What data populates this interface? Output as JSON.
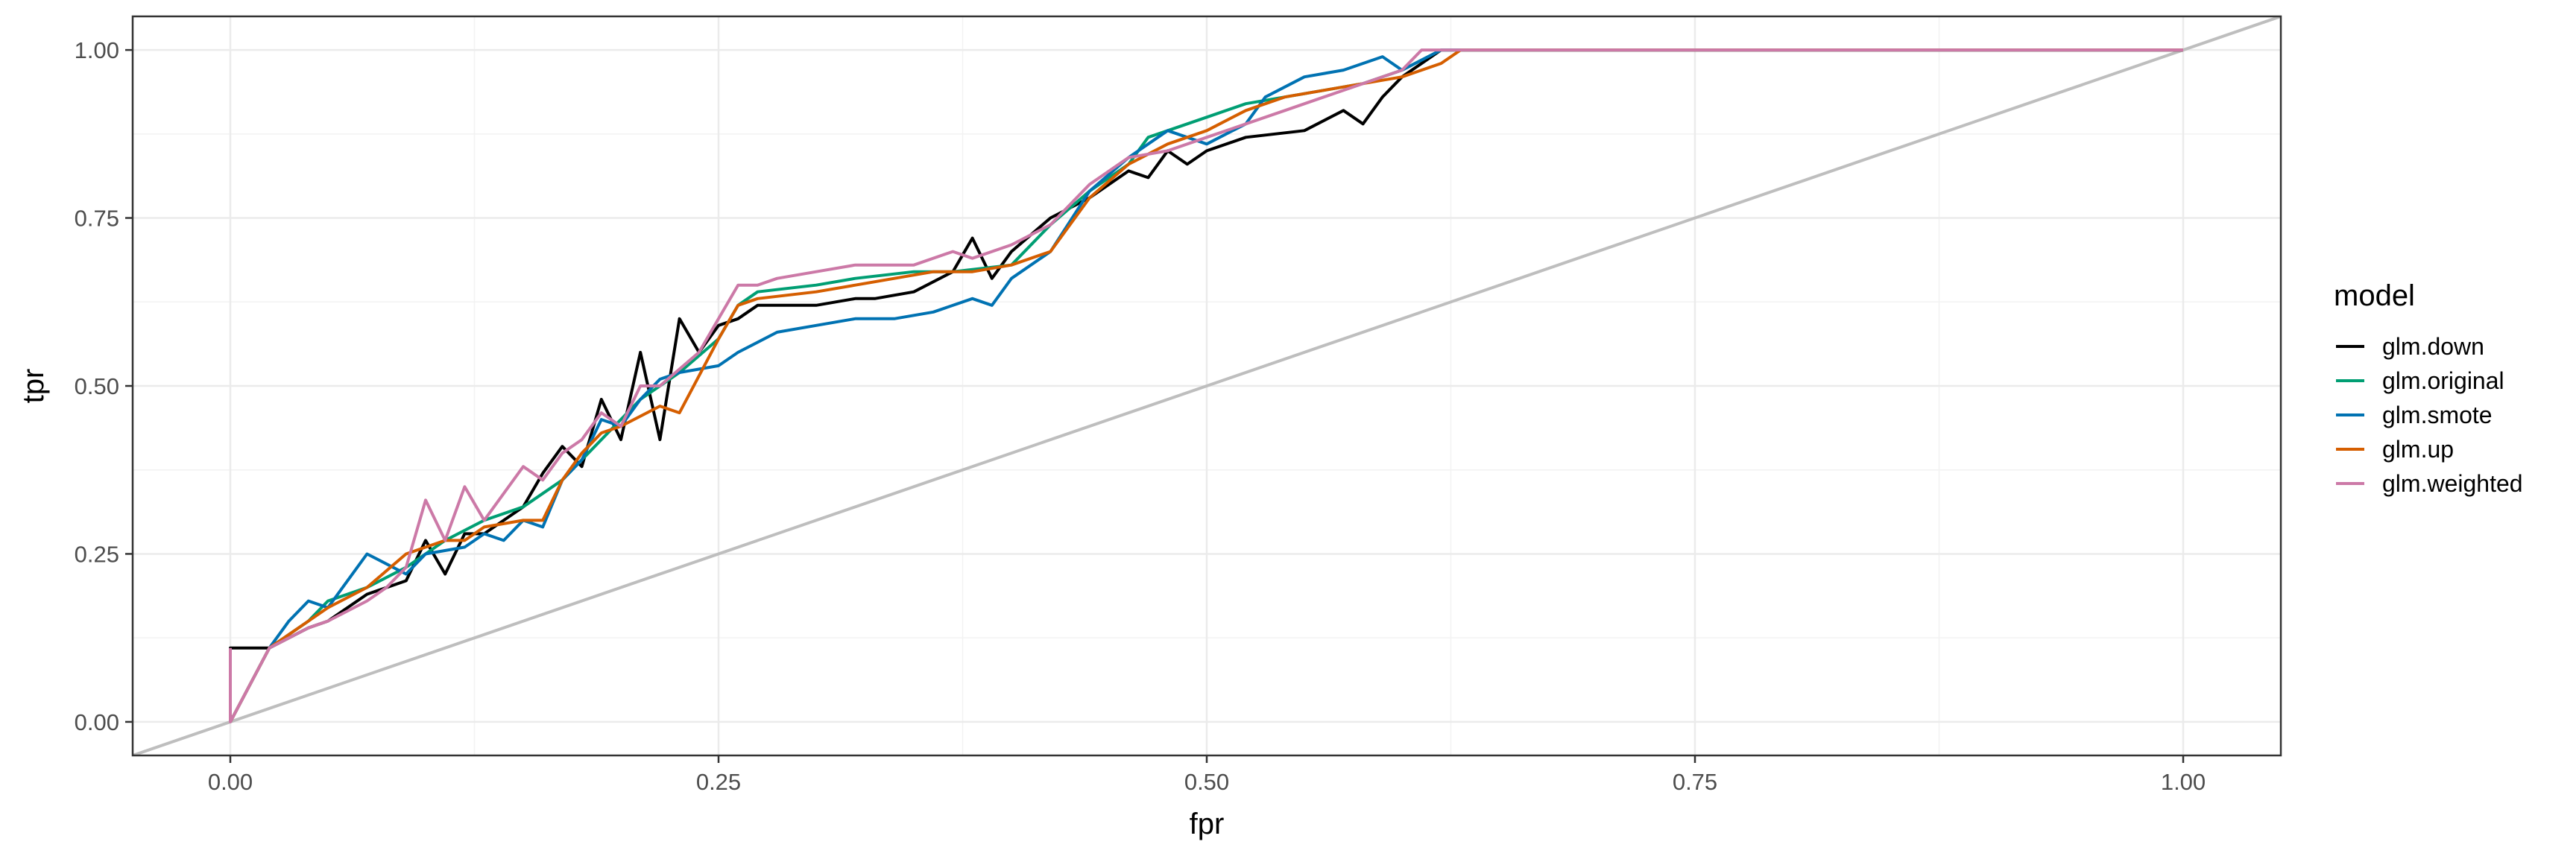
{
  "chart_data": {
    "type": "line",
    "xlabel": "fpr",
    "ylabel": "tpr",
    "xlim": [
      -0.05,
      1.05
    ],
    "ylim": [
      -0.05,
      1.05
    ],
    "x_ticks": [
      0,
      0.25,
      0.5,
      0.75,
      1
    ],
    "x_tick_labels": [
      "0.00",
      "0.25",
      "0.50",
      "0.75",
      "1.00"
    ],
    "y_ticks": [
      0,
      0.25,
      0.5,
      0.75,
      1
    ],
    "y_tick_labels": [
      "0.00",
      "0.25",
      "0.50",
      "0.75",
      "1.00"
    ],
    "grid": true,
    "legend": {
      "title": "model",
      "position": "right"
    },
    "reference_line": {
      "x": [
        -0.05,
        1.05
      ],
      "y": [
        -0.05,
        1.05
      ],
      "color": "#bebebe"
    },
    "series": [
      {
        "name": "glm.down",
        "color": "#000000",
        "x": [
          0,
          0,
          0.02,
          0.04,
          0.05,
          0.07,
          0.09,
          0.1,
          0.11,
          0.12,
          0.13,
          0.14,
          0.15,
          0.16,
          0.17,
          0.18,
          0.19,
          0.2,
          0.21,
          0.22,
          0.23,
          0.24,
          0.25,
          0.26,
          0.27,
          0.3,
          0.32,
          0.33,
          0.35,
          0.37,
          0.38,
          0.39,
          0.4,
          0.42,
          0.44,
          0.46,
          0.47,
          0.48,
          0.49,
          0.5,
          0.52,
          0.55,
          0.57,
          0.58,
          0.59,
          0.6,
          0.62,
          0.63,
          1
        ],
        "y": [
          0,
          0.11,
          0.11,
          0.14,
          0.15,
          0.19,
          0.21,
          0.27,
          0.22,
          0.28,
          0.28,
          0.3,
          0.32,
          0.37,
          0.41,
          0.38,
          0.48,
          0.42,
          0.55,
          0.42,
          0.6,
          0.55,
          0.59,
          0.6,
          0.62,
          0.62,
          0.63,
          0.63,
          0.64,
          0.67,
          0.72,
          0.66,
          0.7,
          0.75,
          0.78,
          0.82,
          0.81,
          0.85,
          0.83,
          0.85,
          0.87,
          0.88,
          0.91,
          0.89,
          0.93,
          0.96,
          1,
          1,
          1
        ]
      },
      {
        "name": "glm.original",
        "color": "#009E73",
        "x": [
          0,
          0.02,
          0.04,
          0.05,
          0.07,
          0.09,
          0.11,
          0.13,
          0.15,
          0.17,
          0.19,
          0.21,
          0.23,
          0.25,
          0.26,
          0.27,
          0.3,
          0.32,
          0.35,
          0.37,
          0.4,
          0.42,
          0.44,
          0.46,
          0.47,
          0.48,
          0.5,
          0.52,
          0.54,
          0.56,
          0.58,
          0.6,
          0.62,
          0.63,
          1
        ],
        "y": [
          0,
          0.11,
          0.15,
          0.18,
          0.2,
          0.23,
          0.27,
          0.3,
          0.32,
          0.36,
          0.42,
          0.48,
          0.52,
          0.57,
          0.62,
          0.64,
          0.65,
          0.66,
          0.67,
          0.67,
          0.68,
          0.74,
          0.79,
          0.83,
          0.87,
          0.88,
          0.9,
          0.92,
          0.93,
          0.94,
          0.95,
          0.97,
          1,
          1,
          1
        ]
      },
      {
        "name": "glm.smote",
        "color": "#0072B2",
        "x": [
          0,
          0.02,
          0.03,
          0.04,
          0.05,
          0.07,
          0.09,
          0.1,
          0.12,
          0.13,
          0.14,
          0.15,
          0.16,
          0.17,
          0.18,
          0.19,
          0.2,
          0.21,
          0.22,
          0.23,
          0.25,
          0.26,
          0.28,
          0.3,
          0.32,
          0.34,
          0.36,
          0.38,
          0.39,
          0.4,
          0.42,
          0.44,
          0.46,
          0.47,
          0.48,
          0.5,
          0.52,
          0.53,
          0.55,
          0.57,
          0.59,
          0.6,
          0.62,
          0.63,
          1
        ],
        "y": [
          0,
          0.11,
          0.15,
          0.18,
          0.17,
          0.25,
          0.22,
          0.25,
          0.26,
          0.28,
          0.27,
          0.3,
          0.29,
          0.36,
          0.39,
          0.45,
          0.44,
          0.48,
          0.51,
          0.52,
          0.53,
          0.55,
          0.58,
          0.59,
          0.6,
          0.6,
          0.61,
          0.63,
          0.62,
          0.66,
          0.7,
          0.79,
          0.84,
          0.86,
          0.88,
          0.86,
          0.89,
          0.93,
          0.96,
          0.97,
          0.99,
          0.97,
          1,
          1,
          1
        ]
      },
      {
        "name": "glm.up",
        "color": "#D55E00",
        "x": [
          0,
          0.02,
          0.04,
          0.05,
          0.07,
          0.09,
          0.11,
          0.12,
          0.13,
          0.15,
          0.16,
          0.17,
          0.18,
          0.19,
          0.2,
          0.22,
          0.23,
          0.25,
          0.26,
          0.27,
          0.3,
          0.32,
          0.34,
          0.36,
          0.38,
          0.4,
          0.42,
          0.44,
          0.46,
          0.48,
          0.5,
          0.52,
          0.54,
          0.56,
          0.58,
          0.6,
          0.62,
          0.63,
          1
        ],
        "y": [
          0,
          0.11,
          0.15,
          0.17,
          0.2,
          0.25,
          0.27,
          0.27,
          0.29,
          0.3,
          0.3,
          0.36,
          0.4,
          0.43,
          0.44,
          0.47,
          0.46,
          0.57,
          0.62,
          0.63,
          0.64,
          0.65,
          0.66,
          0.67,
          0.67,
          0.68,
          0.7,
          0.78,
          0.83,
          0.86,
          0.88,
          0.91,
          0.93,
          0.94,
          0.95,
          0.96,
          0.98,
          1,
          1
        ]
      },
      {
        "name": "glm.weighted",
        "color": "#CC79A7",
        "x": [
          0,
          0,
          0.02,
          0.04,
          0.05,
          0.07,
          0.08,
          0.09,
          0.1,
          0.11,
          0.12,
          0.13,
          0.14,
          0.15,
          0.16,
          0.17,
          0.18,
          0.19,
          0.2,
          0.21,
          0.22,
          0.24,
          0.25,
          0.26,
          0.27,
          0.28,
          0.3,
          0.32,
          0.35,
          0.37,
          0.38,
          0.4,
          0.42,
          0.44,
          0.46,
          0.48,
          0.5,
          0.52,
          0.54,
          0.56,
          0.58,
          0.6,
          0.61,
          0.62,
          0.63,
          1
        ],
        "y": [
          0.11,
          0,
          0.11,
          0.14,
          0.15,
          0.18,
          0.2,
          0.23,
          0.33,
          0.27,
          0.35,
          0.3,
          0.34,
          0.38,
          0.36,
          0.4,
          0.42,
          0.46,
          0.44,
          0.5,
          0.5,
          0.55,
          0.6,
          0.65,
          0.65,
          0.66,
          0.67,
          0.68,
          0.68,
          0.7,
          0.69,
          0.71,
          0.74,
          0.8,
          0.84,
          0.85,
          0.87,
          0.89,
          0.91,
          0.93,
          0.95,
          0.97,
          1,
          1,
          1,
          1
        ]
      }
    ]
  }
}
